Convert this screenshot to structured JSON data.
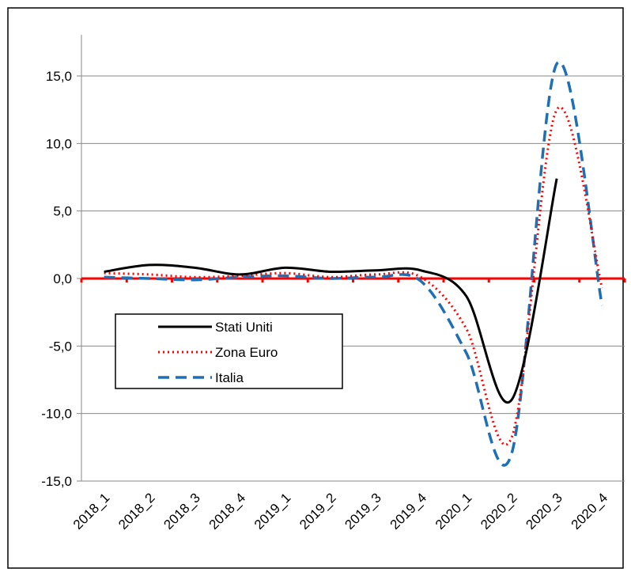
{
  "chart_data": {
    "type": "line",
    "title": "",
    "xlabel": "",
    "ylabel": "",
    "categories": [
      "2018_1",
      "2018_2",
      "2018_3",
      "2018_4",
      "2019_1",
      "2019_2",
      "2019_3",
      "2019_4",
      "2020_1",
      "2020_2",
      "2020_3",
      "2020_4"
    ],
    "ylim": [
      -15,
      15
    ],
    "yticks": [
      -15,
      -10,
      -5,
      0,
      5,
      10,
      15
    ],
    "ytick_labels": [
      "-15,0",
      "-10,0",
      "-5,0",
      "0,0",
      "5,0",
      "10,0",
      "15,0"
    ],
    "grid": "horizontal",
    "legend_position": "left-middle",
    "zero_line_color": "#ff0000",
    "series": [
      {
        "name": "Stati Uniti",
        "color": "#000000",
        "style": "solid",
        "values": [
          0.5,
          1.0,
          0.8,
          0.3,
          0.8,
          0.5,
          0.6,
          0.6,
          -1.3,
          -9.0,
          7.4,
          null
        ]
      },
      {
        "name": "Zona Euro",
        "color": "#ff0000",
        "style": "dotted",
        "values": [
          0.4,
          0.3,
          0.1,
          0.2,
          0.4,
          0.1,
          0.3,
          0.1,
          -3.7,
          -11.8,
          12.5,
          -0.7
        ]
      },
      {
        "name": "Italia",
        "color": "#1f6fb5",
        "style": "dashed",
        "values": [
          0.1,
          0.0,
          -0.1,
          0.1,
          0.2,
          0.0,
          0.1,
          -0.2,
          -5.5,
          -13.0,
          15.9,
          -2.0
        ]
      }
    ]
  }
}
